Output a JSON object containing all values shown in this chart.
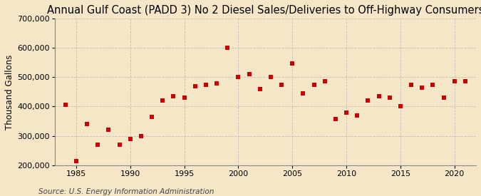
{
  "title": "Annual Gulf Coast (PADD 3) No 2 Diesel Sales/Deliveries to Off-Highway Consumers",
  "ylabel": "Thousand Gallons",
  "source": "Source: U.S. Energy Information Administration",
  "background_color": "#f5e6c8",
  "plot_background_color": "#f5e6c8",
  "marker_color": "#cc0000",
  "marker": "s",
  "marker_size": 16,
  "years": [
    1984,
    1985,
    1986,
    1987,
    1988,
    1989,
    1990,
    1991,
    1992,
    1993,
    1994,
    1995,
    1996,
    1997,
    1998,
    1999,
    2000,
    2001,
    2002,
    2003,
    2004,
    2005,
    2006,
    2007,
    2008,
    2009,
    2010,
    2011,
    2012,
    2013,
    2014,
    2015,
    2016,
    2017,
    2018,
    2019,
    2020,
    2021
  ],
  "values": [
    405000,
    215000,
    340000,
    270000,
    320000,
    270000,
    290000,
    300000,
    365000,
    420000,
    435000,
    430000,
    470000,
    475000,
    480000,
    600000,
    500000,
    510000,
    460000,
    500000,
    475000,
    548000,
    445000,
    475000,
    485000,
    358000,
    380000,
    370000,
    420000,
    435000,
    430000,
    400000,
    475000,
    465000,
    475000,
    430000,
    485000,
    485000
  ],
  "xlim": [
    1983,
    2022
  ],
  "ylim": [
    200000,
    700000
  ],
  "yticks": [
    200000,
    300000,
    400000,
    500000,
    600000,
    700000
  ],
  "xticks": [
    1985,
    1990,
    1995,
    2000,
    2005,
    2010,
    2015,
    2020
  ],
  "grid_color": "#bbbbbb",
  "grid_style": "--",
  "title_fontsize": 10.5,
  "label_fontsize": 8.5,
  "tick_fontsize": 8,
  "source_fontsize": 7.5
}
